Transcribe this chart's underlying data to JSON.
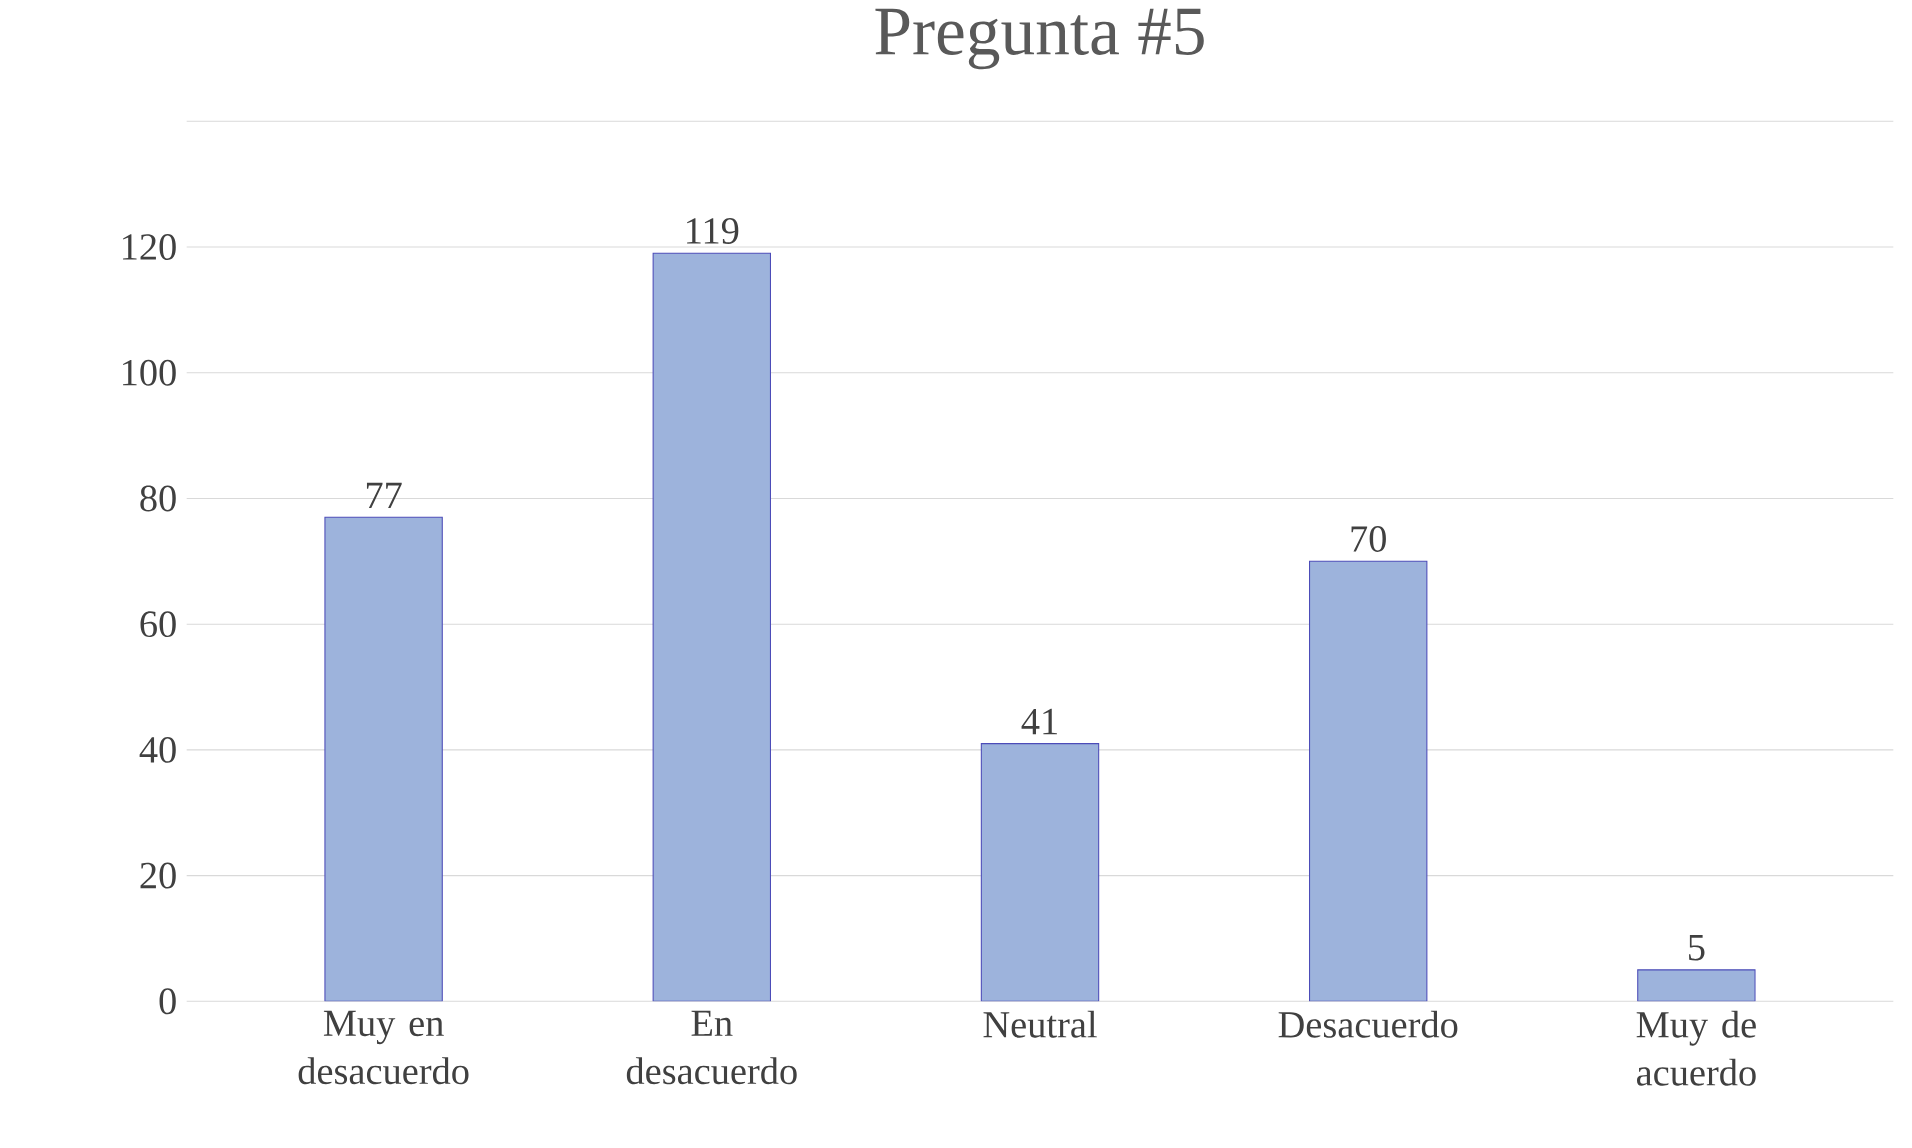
{
  "chart_data": {
    "type": "bar",
    "title": "Pregunta #5",
    "categories": [
      "Muy en desacuerdo",
      "En desacuerdo",
      "Neutral",
      "Desacuerdo",
      "Muy de acuerdo"
    ],
    "values": [
      77,
      119,
      41,
      70,
      5
    ],
    "color": "#9db3dc",
    "ylim": [
      0,
      140
    ],
    "yticks": [
      0,
      20,
      40,
      60,
      80,
      100,
      120,
      {
        "value": 140,
        "label": null
      }
    ],
    "grid": "y",
    "data_labels": true
  }
}
